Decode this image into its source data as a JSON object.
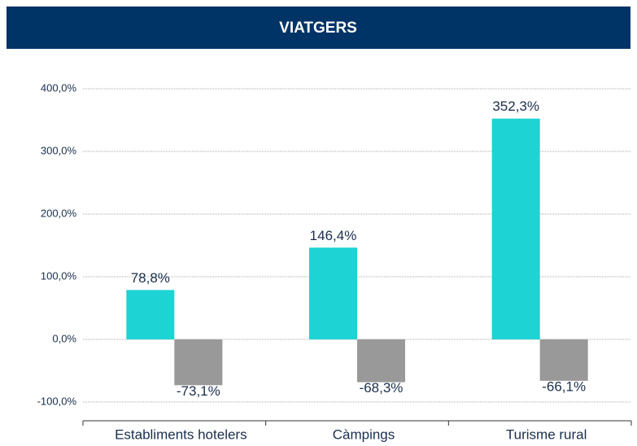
{
  "chart_data": {
    "type": "bar",
    "title": "VIATGERS",
    "categories": [
      "Establiments hotelers",
      "Càmpings",
      "Turisme rural"
    ],
    "series": [
      {
        "color": "#1dd3d3",
        "values": [
          78.8,
          146.4,
          352.3
        ],
        "value_labels": [
          "78,8%",
          "146,4%",
          "352,3%"
        ]
      },
      {
        "color": "#999999",
        "values": [
          -73.1,
          -68.3,
          -66.1
        ],
        "value_labels": [
          "-73,1%",
          "-68,3%",
          "-66,1%"
        ]
      }
    ],
    "ylim": [
      -100,
      400
    ],
    "yticks": [
      {
        "value": -100,
        "label": "-100,0%"
      },
      {
        "value": 0,
        "label": "0,0%"
      },
      {
        "value": 100,
        "label": "100,0%"
      },
      {
        "value": 200,
        "label": "200,0%"
      },
      {
        "value": 300,
        "label": "300,0%"
      },
      {
        "value": 400,
        "label": "400,0%"
      }
    ],
    "grid": true
  }
}
